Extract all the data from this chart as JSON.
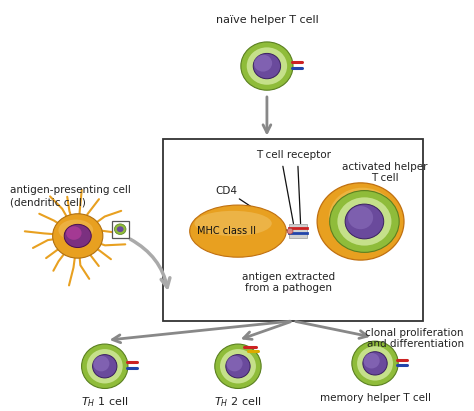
{
  "bg_color": "#ffffff",
  "text_color": "#222222",
  "cell_green_outer": "#8fbc3a",
  "cell_green_mid": "#c5e08a",
  "cell_nucleus_dark": "#6a4a9c",
  "cell_nucleus_light": "#9b7fcb",
  "mhc_orange": "#e8a020",
  "mhc_orange_light": "#f0c060",
  "mhc_orange_edge": "#c07010",
  "dc_orange": "#e8a020",
  "dc_nucleus_purple": "#7b3080",
  "dc_nucleus_pink": "#c040a0",
  "arrow_gray": "#888888",
  "box_edge": "#333333",
  "receptor_red": "#cc2222",
  "receptor_blue": "#2244aa",
  "receptor_yellow": "#ddaa00",
  "bind_gray": "#bbbbbb",
  "act_cell_outer": "#e8a020",
  "act_cell_outer_edge": "#c07010",
  "naive_label": "naïve helper T cell",
  "activated_label": "activated helper\nT cell",
  "apc_label": "antigen-presenting cell\n(dendritic cell)",
  "tcr_label": "T cell receptor",
  "cd4_label": "CD4",
  "mhc_label": "MHC class II",
  "antigen_label": "antigen extracted\nfrom a pathogen",
  "clonal_label": "clonal proliferation\nand differentiation",
  "mem_label": "memory helper T cell",
  "fig_w": 4.74,
  "fig_h": 4.11
}
